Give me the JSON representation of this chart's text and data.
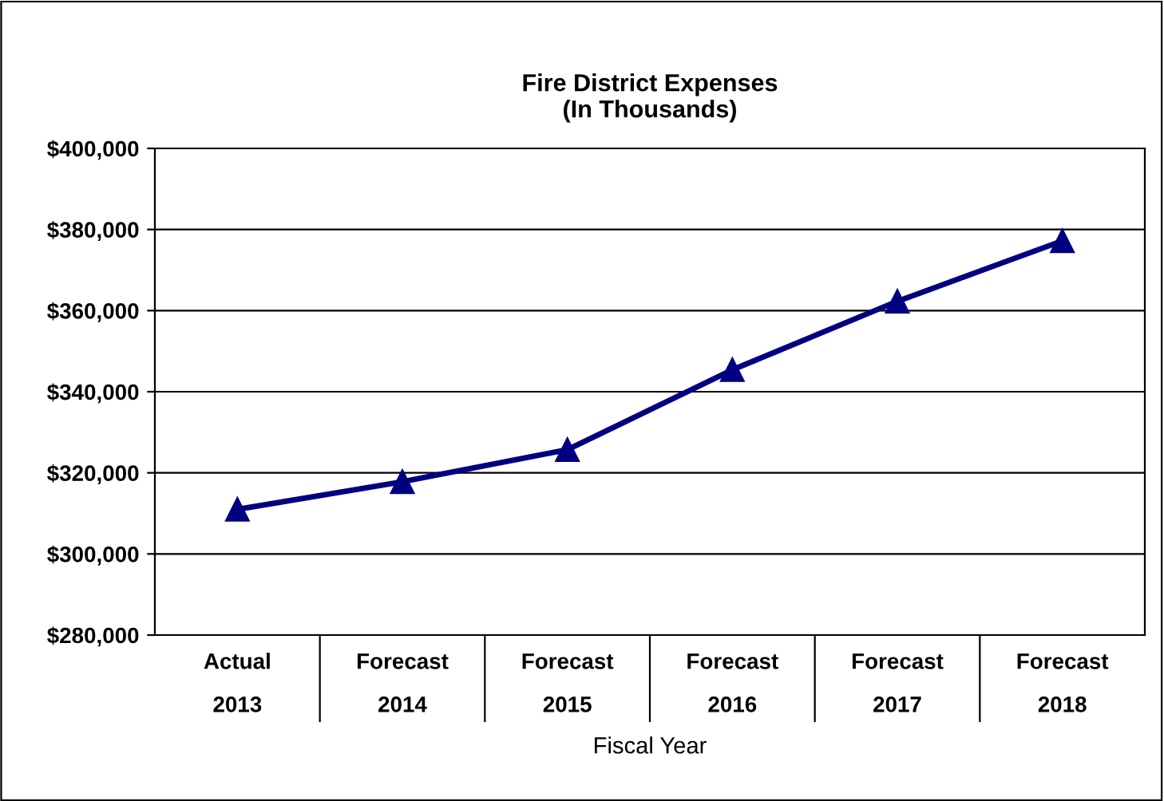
{
  "chart_data": {
    "type": "line",
    "title": "Fire District Expenses\n(In Thousands)",
    "xlabel": "Fiscal Year",
    "categories": [
      "Actual\n2013",
      "Forecast\n2014",
      "Forecast\n2015",
      "Forecast\n2016",
      "Forecast\n2017",
      "Forecast\n2018"
    ],
    "series": [
      {
        "color": "#000080",
        "values": [
          311000,
          317800,
          325700,
          345400,
          362300,
          377200
        ]
      }
    ],
    "ylim": [
      280000,
      400000
    ],
    "yticks": [
      {
        "value": 280000,
        "label": "$280,000"
      },
      {
        "value": 300000,
        "label": "$300,000"
      },
      {
        "value": 320000,
        "label": "$320,000"
      },
      {
        "value": 340000,
        "label": "$340,000"
      },
      {
        "value": 360000,
        "label": "$360,000"
      },
      {
        "value": 380000,
        "label": "$380,000"
      },
      {
        "value": 400000,
        "label": "$400,000"
      }
    ],
    "grid": "y",
    "marker": "triangle",
    "line_style": "solid",
    "legend": false
  }
}
